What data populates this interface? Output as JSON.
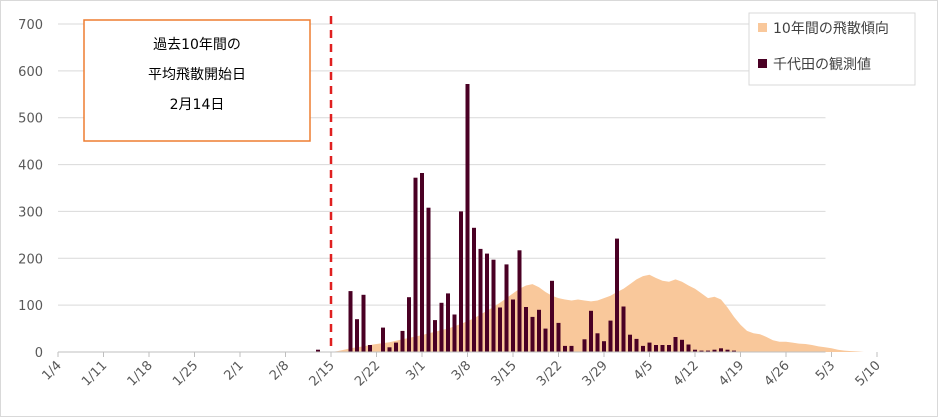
{
  "chart_data": {
    "type": "bar",
    "ylim": [
      0,
      700
    ],
    "y_ticks": [
      "0",
      "100",
      "200",
      "300",
      "400",
      "500",
      "600",
      "700"
    ],
    "x_range_days": [
      0,
      115
    ],
    "x_ticks": [
      {
        "label": "1/4",
        "day": 0
      },
      {
        "label": "1/11",
        "day": 7
      },
      {
        "label": "1/18",
        "day": 14
      },
      {
        "label": "1/25",
        "day": 21
      },
      {
        "label": "2/1",
        "day": 28
      },
      {
        "label": "2/8",
        "day": 35
      },
      {
        "label": "2/15",
        "day": 42
      },
      {
        "label": "2/22",
        "day": 49
      },
      {
        "label": "3/1",
        "day": 56
      },
      {
        "label": "3/8",
        "day": 63
      },
      {
        "label": "3/15",
        "day": 70
      },
      {
        "label": "3/22",
        "day": 77
      },
      {
        "label": "3/29",
        "day": 84
      },
      {
        "label": "4/5",
        "day": 91
      },
      {
        "label": "4/12",
        "day": 98
      },
      {
        "label": "4/19",
        "day": 105
      },
      {
        "label": "4/26",
        "day": 112
      },
      {
        "label": "5/3",
        "day": 119
      },
      {
        "label": "5/10",
        "day": 126
      }
    ],
    "grid": true,
    "legend_position": "top-right",
    "series": [
      {
        "name": "10年間の飛散傾向",
        "type": "area",
        "color": "#f9c89b",
        "points": [
          [
            42,
            0
          ],
          [
            43,
            2
          ],
          [
            44,
            5
          ],
          [
            45,
            8
          ],
          [
            46,
            10
          ],
          [
            47,
            12
          ],
          [
            48,
            15
          ],
          [
            49,
            17
          ],
          [
            50,
            19
          ],
          [
            51,
            21
          ],
          [
            52,
            24
          ],
          [
            53,
            27
          ],
          [
            54,
            30
          ],
          [
            55,
            33
          ],
          [
            56,
            36
          ],
          [
            57,
            40
          ],
          [
            58,
            43
          ],
          [
            59,
            47
          ],
          [
            60,
            50
          ],
          [
            61,
            55
          ],
          [
            62,
            60
          ],
          [
            63,
            66
          ],
          [
            64,
            72
          ],
          [
            65,
            80
          ],
          [
            66,
            88
          ],
          [
            67,
            96
          ],
          [
            68,
            105
          ],
          [
            69,
            115
          ],
          [
            70,
            125
          ],
          [
            71,
            135
          ],
          [
            72,
            142
          ],
          [
            73,
            145
          ],
          [
            74,
            138
          ],
          [
            75,
            128
          ],
          [
            76,
            120
          ],
          [
            77,
            115
          ],
          [
            78,
            112
          ],
          [
            79,
            110
          ],
          [
            80,
            112
          ],
          [
            81,
            110
          ],
          [
            82,
            108
          ],
          [
            83,
            110
          ],
          [
            84,
            115
          ],
          [
            85,
            120
          ],
          [
            86,
            128
          ],
          [
            87,
            135
          ],
          [
            88,
            145
          ],
          [
            89,
            155
          ],
          [
            90,
            162
          ],
          [
            91,
            165
          ],
          [
            92,
            158
          ],
          [
            93,
            152
          ],
          [
            94,
            150
          ],
          [
            95,
            155
          ],
          [
            96,
            150
          ],
          [
            97,
            142
          ],
          [
            98,
            135
          ],
          [
            99,
            125
          ],
          [
            100,
            115
          ],
          [
            101,
            118
          ],
          [
            102,
            112
          ],
          [
            103,
            95
          ],
          [
            104,
            75
          ],
          [
            105,
            58
          ],
          [
            106,
            45
          ],
          [
            107,
            40
          ],
          [
            108,
            38
          ],
          [
            109,
            32
          ],
          [
            110,
            25
          ],
          [
            111,
            22
          ],
          [
            112,
            22
          ],
          [
            113,
            20
          ],
          [
            114,
            18
          ],
          [
            115,
            17
          ],
          [
            116,
            15
          ],
          [
            117,
            12
          ],
          [
            118,
            10
          ],
          [
            119,
            8
          ],
          [
            120,
            5
          ],
          [
            121,
            3
          ],
          [
            122,
            2
          ],
          [
            123,
            1
          ],
          [
            124,
            0
          ]
        ]
      },
      {
        "name": "千代田の観測値",
        "type": "bar",
        "color": "#4a0024",
        "points": [
          [
            40,
            5
          ],
          [
            45,
            130
          ],
          [
            46,
            70
          ],
          [
            47,
            122
          ],
          [
            48,
            15
          ],
          [
            50,
            52
          ],
          [
            51,
            10
          ],
          [
            52,
            20
          ],
          [
            53,
            45
          ],
          [
            54,
            117
          ],
          [
            55,
            372
          ],
          [
            56,
            382
          ],
          [
            57,
            308
          ],
          [
            58,
            68
          ],
          [
            59,
            105
          ],
          [
            60,
            125
          ],
          [
            61,
            80
          ],
          [
            62,
            300
          ],
          [
            63,
            572
          ],
          [
            64,
            265
          ],
          [
            65,
            220
          ],
          [
            66,
            210
          ],
          [
            67,
            197
          ],
          [
            68,
            95
          ],
          [
            69,
            187
          ],
          [
            70,
            112
          ],
          [
            71,
            217
          ],
          [
            72,
            96
          ],
          [
            73,
            75
          ],
          [
            74,
            90
          ],
          [
            75,
            50
          ],
          [
            76,
            152
          ],
          [
            77,
            62
          ],
          [
            78,
            13
          ],
          [
            79,
            13
          ],
          [
            81,
            27
          ],
          [
            82,
            88
          ],
          [
            83,
            40
          ],
          [
            84,
            23
          ],
          [
            85,
            67
          ],
          [
            86,
            242
          ],
          [
            87,
            97
          ],
          [
            88,
            37
          ],
          [
            89,
            28
          ],
          [
            90,
            13
          ],
          [
            91,
            20
          ],
          [
            92,
            15
          ],
          [
            93,
            15
          ],
          [
            94,
            15
          ],
          [
            95,
            32
          ],
          [
            96,
            26
          ],
          [
            97,
            16
          ],
          [
            98,
            5
          ],
          [
            99,
            3
          ],
          [
            100,
            3
          ],
          [
            101,
            5
          ],
          [
            102,
            8
          ],
          [
            103,
            5
          ],
          [
            104,
            3
          ]
        ]
      }
    ],
    "reference_line": {
      "day": 42,
      "style": "dashed",
      "color": "#e02020"
    },
    "annotation": {
      "lines": [
        "過去10年間の",
        "平均飛散開始日",
        "2月14日"
      ],
      "border_color": "#ed7d31"
    }
  }
}
